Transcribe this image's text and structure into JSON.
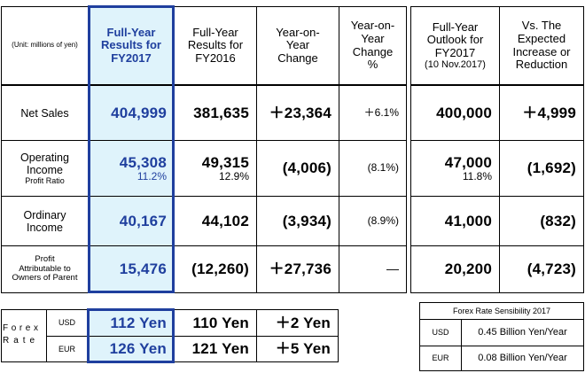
{
  "header": {
    "unit_note": "(Unit: millions of yen)",
    "col_fy2017": [
      "Full-Year",
      "Results for",
      "FY2017"
    ],
    "col_fy2016": [
      "Full-Year",
      "Results for",
      "FY2016"
    ],
    "col_yoy": [
      "Year-on-",
      "Year",
      "Change"
    ],
    "col_yoy_pct": [
      "Year-on-",
      "Year",
      "Change",
      "%"
    ],
    "col_outlook": [
      "Full-Year",
      "Outlook for",
      "FY2017",
      "(10 Nov.2017)"
    ],
    "col_vs": [
      "Vs. The",
      "Expected",
      "Increase or",
      "Reduction"
    ]
  },
  "rows": {
    "net_sales": {
      "label": "Net Sales",
      "fy2017": "404,999",
      "fy2016": "381,635",
      "yoy": "＋23,364",
      "yoy_pct": "＋6.1%",
      "outlook": "400,000",
      "vs": "＋4,999"
    },
    "operating_income": {
      "label1": "Operating",
      "label2": "Income",
      "label3": "Profit Ratio",
      "fy2017": "45,308",
      "fy2017_ratio": "11.2%",
      "fy2016": "49,315",
      "fy2016_ratio": "12.9%",
      "yoy": "(4,006)",
      "yoy_pct": "(8.1%)",
      "outlook": "47,000",
      "outlook_ratio": "11.8%",
      "vs": "(1,692)"
    },
    "ordinary_income": {
      "label1": "Ordinary",
      "label2": "Income",
      "fy2017": "40,167",
      "fy2016": "44,102",
      "yoy": "(3,934)",
      "yoy_pct": "(8.9%)",
      "outlook": "41,000",
      "vs": "(832)"
    },
    "profit_parent": {
      "label1": "Profit",
      "label2": "Attributable to",
      "label3": "Owners of Parent",
      "fy2017": "15,476",
      "fy2016": "(12,260)",
      "yoy": "＋27,736",
      "yoy_pct": "―",
      "outlook": "20,200",
      "vs": "(4,723)"
    }
  },
  "forex": {
    "label_chars": [
      "F",
      "o",
      "r",
      "e",
      "x"
    ],
    "label_chars2": [
      "R",
      "a",
      "t",
      "e"
    ],
    "usd": {
      "code": "USD",
      "fy2017": "112 Yen",
      "fy2016": "110 Yen",
      "change": "＋2 Yen"
    },
    "eur": {
      "code": "EUR",
      "fy2017": "126 Yen",
      "fy2016": "121 Yen",
      "change": "＋5 Yen"
    }
  },
  "sensitivity": {
    "title": "Forex Rate Sensibility 2017",
    "usd": {
      "code": "USD",
      "value": "0.45 Billion Yen/Year"
    },
    "eur": {
      "code": "EUR",
      "value": "0.08 Billion Yen/Year"
    }
  },
  "colors": {
    "highlight_bg": "#dff3fb",
    "highlight_border": "#1f3f9e",
    "blue_text": "#1f3f9e"
  }
}
